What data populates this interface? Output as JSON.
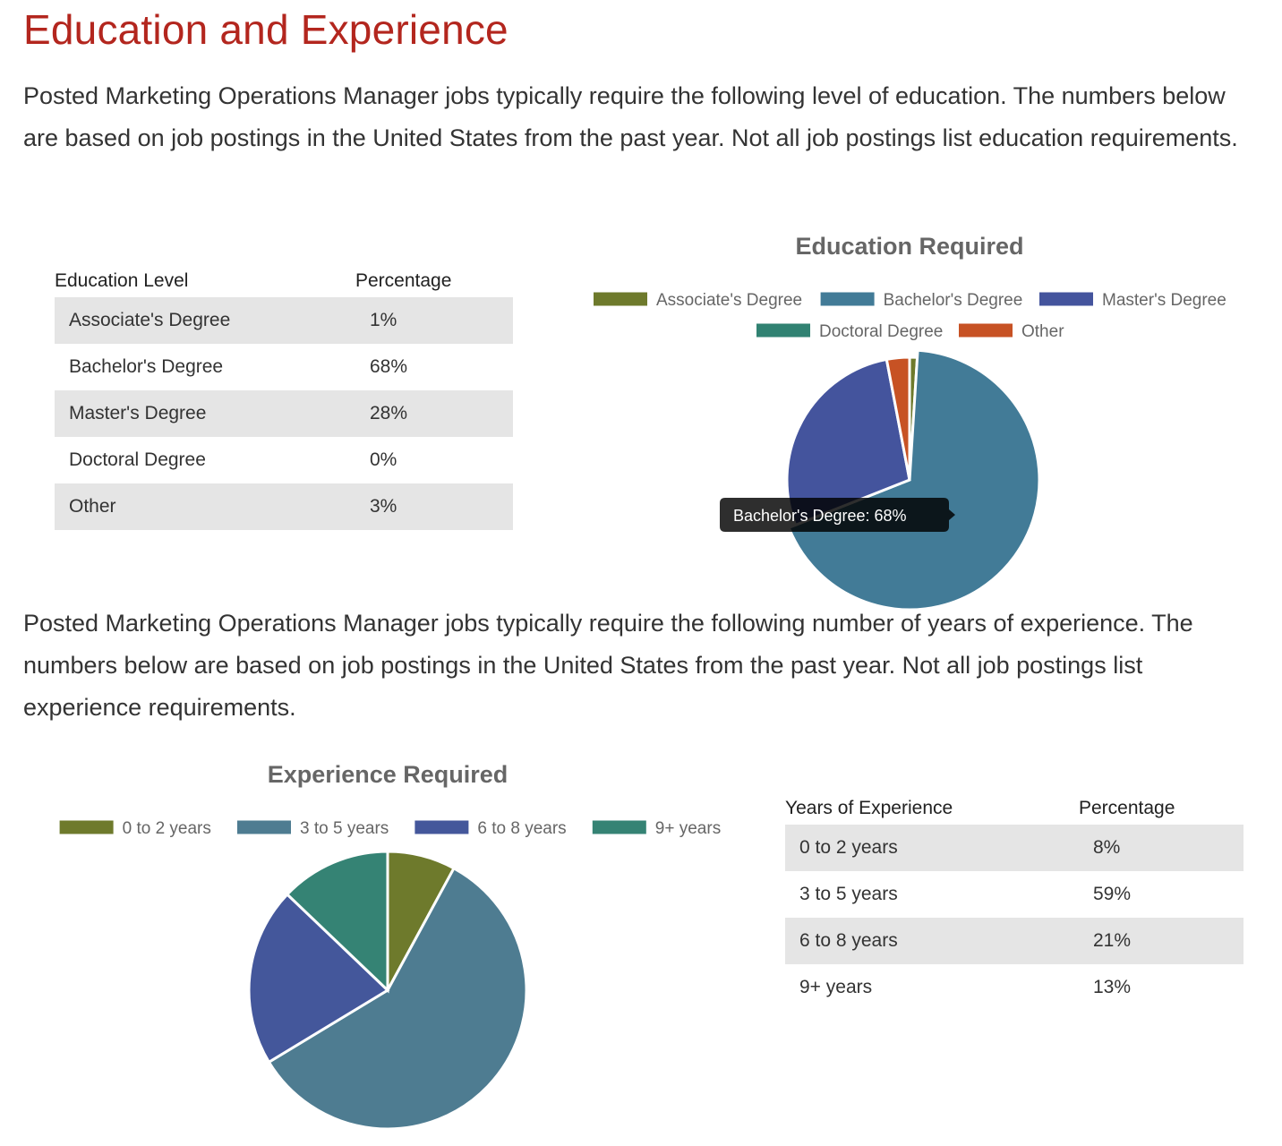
{
  "title": "Education and Experience",
  "education": {
    "intro": "Posted Marketing Operations Manager jobs typically require the following level of education. The numbers below are based on job postings in the United States from the past year. Not all job postings list education requirements.",
    "table": {
      "headers": [
        "Education Level",
        "Percentage"
      ],
      "rows": [
        [
          "Associate's Degree",
          "1%"
        ],
        [
          "Bachelor's Degree",
          "68%"
        ],
        [
          "Master's Degree",
          "28%"
        ],
        [
          "Doctoral Degree",
          "0%"
        ],
        [
          "Other",
          "3%"
        ]
      ]
    },
    "tooltip": "Bachelor's Degree: 68%"
  },
  "experience": {
    "intro": "Posted Marketing Operations Manager jobs typically require the following number of years of experience. The numbers below are based on job postings in the United States from the past year. Not all job postings list experience requirements.",
    "table": {
      "headers": [
        "Years of Experience",
        "Percentage"
      ],
      "rows": [
        [
          "0 to 2 years",
          "8%"
        ],
        [
          "3 to 5 years",
          "59%"
        ],
        [
          "6 to 8 years",
          "21%"
        ],
        [
          "9+ years",
          "13%"
        ]
      ]
    }
  },
  "chart_data": [
    {
      "type": "pie",
      "title": "Education Required",
      "categories": [
        "Associate's Degree",
        "Bachelor's Degree",
        "Master's Degree",
        "Doctoral Degree",
        "Other"
      ],
      "values": [
        1,
        68,
        28,
        0,
        3
      ],
      "colors": [
        "#6e7a2c",
        "#427b97",
        "#44549d",
        "#318272",
        "#c75224"
      ],
      "legend_position": "top",
      "highlighted": "Bachelor's Degree"
    },
    {
      "type": "pie",
      "title": "Experience Required",
      "categories": [
        "0 to 2 years",
        "3 to 5 years",
        "6 to 8 years",
        "9+ years"
      ],
      "values": [
        8,
        59,
        21,
        13
      ],
      "colors": [
        "#6e7a2c",
        "#4e7c91",
        "#44579b",
        "#358374"
      ],
      "legend_position": "top"
    }
  ]
}
